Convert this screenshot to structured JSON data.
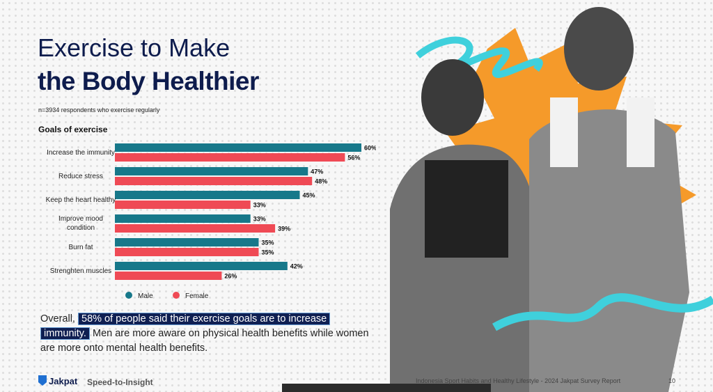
{
  "title_line1": "Exercise to Make",
  "title_line2": "the Body Healthier",
  "note": "n=3934 respondents who exercise regularly",
  "chart_data": {
    "type": "bar",
    "orientation": "horizontal",
    "title": "Goals of exercise",
    "categories": [
      "Increase the immunity",
      "Reduce stress",
      "Keep the heart healthy",
      "Improve mood condition",
      "Burn fat",
      "Strenghten muscles"
    ],
    "series": [
      {
        "name": "Male",
        "color": "#17788a",
        "values": [
          60,
          47,
          45,
          33,
          35,
          42
        ],
        "value_labels": [
          "60%",
          "47%",
          "45%",
          "33%",
          "35%",
          "42%"
        ]
      },
      {
        "name": "Female",
        "color": "#ef4a55",
        "values": [
          56,
          48,
          33,
          39,
          35,
          26
        ],
        "value_labels": [
          "56%",
          "48%",
          "33%",
          "39%",
          "35%",
          "26%"
        ]
      }
    ]
  },
  "summary": {
    "lead": "Overall,",
    "highlight": "58% of people said their exercise goals are to increase immunity.",
    "rest": "Men are more aware on physical health benefits while women are more onto mental health benefits."
  },
  "footer": {
    "brand": "Jakpat",
    "tagline": "Speed-to-Insight",
    "report": "Indonesia Sport Habits and Healthy Lifestyle - 2024 Jakpat Survey Report",
    "page": "10"
  }
}
